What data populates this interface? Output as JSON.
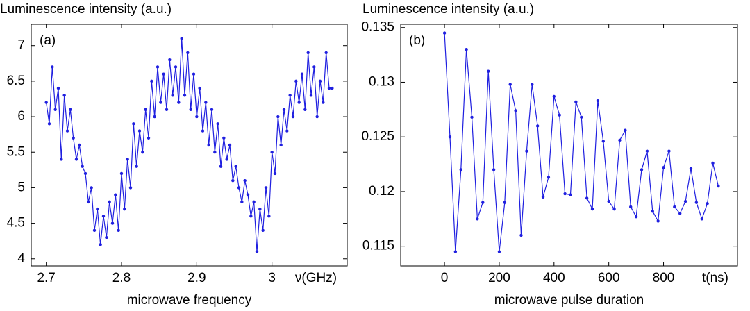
{
  "chart_data": [
    {
      "type": "line",
      "title": "Luminescence intensity (a.u.)",
      "xlabel": "microwave frequency",
      "annotation": "(a)",
      "x_unit_label": "ν(GHz)",
      "color": "#1f1fe0",
      "xlim": [
        2.68,
        3.1
      ],
      "ylim": [
        3.9,
        7.3
      ],
      "xticks": [
        2.7,
        2.8,
        2.9,
        3
      ],
      "yticks": [
        4,
        4.5,
        5,
        5.5,
        6,
        6.5,
        7
      ],
      "x": [
        2.7,
        2.704,
        2.708,
        2.712,
        2.716,
        2.72,
        2.724,
        2.728,
        2.732,
        2.736,
        2.74,
        2.744,
        2.748,
        2.752,
        2.756,
        2.76,
        2.764,
        2.768,
        2.772,
        2.776,
        2.78,
        2.784,
        2.788,
        2.792,
        2.796,
        2.8,
        2.804,
        2.808,
        2.812,
        2.816,
        2.82,
        2.824,
        2.828,
        2.832,
        2.836,
        2.84,
        2.844,
        2.848,
        2.852,
        2.856,
        2.86,
        2.864,
        2.868,
        2.872,
        2.876,
        2.88,
        2.884,
        2.888,
        2.892,
        2.896,
        2.9,
        2.904,
        2.908,
        2.912,
        2.916,
        2.92,
        2.924,
        2.928,
        2.932,
        2.936,
        2.94,
        2.944,
        2.948,
        2.952,
        2.956,
        2.96,
        2.964,
        2.968,
        2.972,
        2.976,
        2.98,
        2.984,
        2.988,
        2.992,
        2.996,
        3.0,
        3.004,
        3.008,
        3.012,
        3.016,
        3.02,
        3.024,
        3.028,
        3.032,
        3.036,
        3.04,
        3.044,
        3.048,
        3.052,
        3.056,
        3.06,
        3.064,
        3.068,
        3.072,
        3.076,
        3.08
      ],
      "values": [
        6.2,
        5.9,
        6.7,
        6.1,
        6.4,
        5.4,
        6.3,
        5.8,
        6.1,
        5.7,
        5.4,
        5.6,
        5.3,
        5.2,
        4.8,
        5.0,
        4.4,
        4.7,
        4.2,
        4.6,
        4.3,
        4.8,
        4.5,
        4.9,
        4.4,
        5.2,
        4.7,
        5.4,
        5.0,
        5.9,
        5.3,
        5.8,
        5.5,
        6.1,
        5.7,
        6.5,
        6.0,
        6.7,
        6.2,
        6.6,
        6.1,
        6.8,
        6.3,
        6.7,
        6.2,
        7.1,
        6.3,
        6.9,
        6.1,
        6.6,
        6.0,
        6.4,
        5.8,
        6.2,
        5.6,
        6.1,
        5.5,
        5.9,
        5.3,
        5.7,
        5.4,
        5.6,
        5.1,
        5.3,
        5.0,
        4.8,
        5.1,
        4.9,
        4.6,
        4.8,
        4.1,
        4.7,
        4.4,
        5.0,
        4.6,
        5.5,
        5.2,
        6.0,
        5.6,
        6.1,
        5.8,
        6.3,
        6.0,
        6.5,
        6.2,
        6.6,
        6.1,
        6.9,
        6.3,
        6.7,
        6.0,
        6.5,
        6.2,
        6.9,
        6.4,
        6.4
      ]
    },
    {
      "type": "line",
      "title": "Luminescence intensity (a.u.)",
      "xlabel": "microwave pulse duration",
      "annotation": "(b)",
      "x_unit_label": "t(ns)",
      "color": "#1f1fe0",
      "xlim": [
        -160,
        1070
      ],
      "ylim": [
        0.1132,
        0.1353
      ],
      "xticks": [
        0,
        200,
        400,
        600,
        800
      ],
      "yticks": [
        0.115,
        0.12,
        0.125,
        0.13,
        0.135
      ],
      "x": [
        0,
        20,
        40,
        60,
        80,
        100,
        120,
        140,
        160,
        180,
        200,
        220,
        240,
        260,
        280,
        300,
        320,
        340,
        360,
        380,
        400,
        420,
        440,
        460,
        480,
        500,
        520,
        540,
        560,
        580,
        600,
        620,
        640,
        660,
        680,
        700,
        720,
        740,
        760,
        780,
        800,
        820,
        840,
        860,
        880,
        900,
        920,
        940,
        960,
        980,
        1000
      ],
      "values": [
        0.1345,
        0.125,
        0.1145,
        0.122,
        0.133,
        0.1268,
        0.1175,
        0.119,
        0.131,
        0.122,
        0.1145,
        0.119,
        0.1298,
        0.1274,
        0.116,
        0.1237,
        0.1298,
        0.126,
        0.1195,
        0.1213,
        0.1287,
        0.127,
        0.1198,
        0.1197,
        0.1282,
        0.1268,
        0.1194,
        0.1184,
        0.1283,
        0.1246,
        0.1191,
        0.1184,
        0.1247,
        0.1256,
        0.1186,
        0.1177,
        0.122,
        0.1237,
        0.1182,
        0.1173,
        0.1222,
        0.1237,
        0.1186,
        0.118,
        0.1191,
        0.1221,
        0.119,
        0.1175,
        0.1189,
        0.1226,
        0.1205
      ]
    }
  ]
}
